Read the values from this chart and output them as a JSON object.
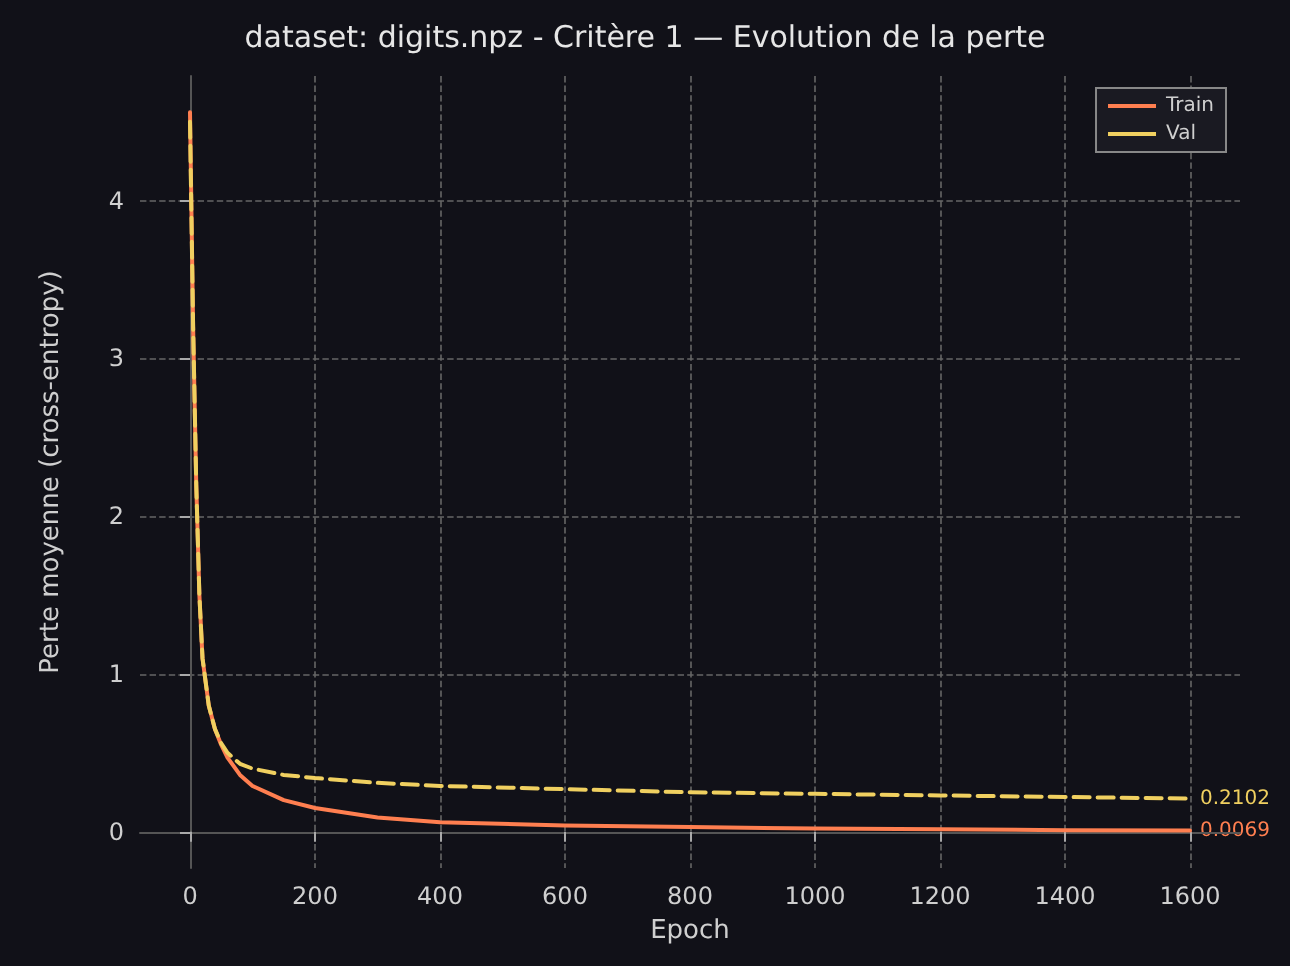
{
  "chart_data": {
    "type": "line",
    "title": "dataset: digits.npz - Critère 1 — Evolution de la perte",
    "xlabel": "Epoch",
    "ylabel": "Perte moyenne (cross-entropy)",
    "x": [
      0,
      5,
      10,
      15,
      20,
      30,
      40,
      50,
      60,
      80,
      100,
      150,
      200,
      300,
      400,
      600,
      800,
      1000,
      1200,
      1400,
      1600
    ],
    "series": [
      {
        "name": "Train",
        "color": "#ff7f50",
        "line_style": "solid",
        "values": [
          4.56,
          3.2,
          2.2,
          1.5,
          1.1,
          0.8,
          0.65,
          0.55,
          0.47,
          0.36,
          0.29,
          0.2,
          0.15,
          0.09,
          0.06,
          0.04,
          0.03,
          0.02,
          0.015,
          0.01,
          0.0069
        ]
      },
      {
        "name": "Val",
        "color": "#f0d060",
        "line_style": "dashed",
        "values": [
          4.5,
          3.2,
          2.2,
          1.5,
          1.1,
          0.8,
          0.65,
          0.56,
          0.5,
          0.43,
          0.4,
          0.36,
          0.34,
          0.31,
          0.29,
          0.27,
          0.25,
          0.24,
          0.23,
          0.22,
          0.2102
        ]
      }
    ],
    "xlim": [
      -80,
      1680
    ],
    "xticks": [
      0,
      200,
      400,
      600,
      800,
      1000,
      1200,
      1400,
      1600
    ],
    "ylim": [
      -0.23,
      4.79
    ],
    "yticks": [
      0,
      1,
      2,
      3,
      4
    ],
    "annotations": [
      {
        "text": "0.2102",
        "x": 1600,
        "y": 0.2102
      },
      {
        "text": "0.0069",
        "x": 1600,
        "y": 0.0069
      }
    ],
    "grid": true,
    "legend": "top right",
    "marker": "none"
  }
}
